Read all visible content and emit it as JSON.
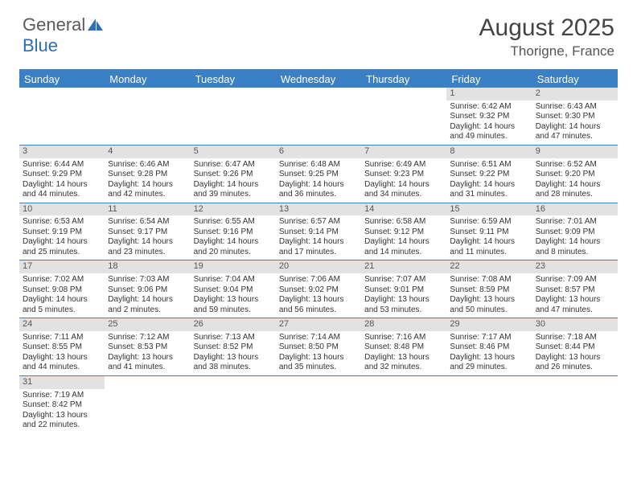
{
  "logo": {
    "text1": "General",
    "text2": "Blue"
  },
  "title": "August 2025",
  "location": "Thorigne, France",
  "colors": {
    "header_bg": "#3b7fc4",
    "header_text": "#ffffff",
    "daynum_bg": "#e2e2e2",
    "border": "#3b7fc4"
  },
  "day_headers": [
    "Sunday",
    "Monday",
    "Tuesday",
    "Wednesday",
    "Thursday",
    "Friday",
    "Saturday"
  ],
  "weeks": [
    [
      null,
      null,
      null,
      null,
      null,
      {
        "n": "1",
        "sr": "6:42 AM",
        "ss": "9:32 PM",
        "dl": "14 hours and 49 minutes."
      },
      {
        "n": "2",
        "sr": "6:43 AM",
        "ss": "9:30 PM",
        "dl": "14 hours and 47 minutes."
      }
    ],
    [
      {
        "n": "3",
        "sr": "6:44 AM",
        "ss": "9:29 PM",
        "dl": "14 hours and 44 minutes."
      },
      {
        "n": "4",
        "sr": "6:46 AM",
        "ss": "9:28 PM",
        "dl": "14 hours and 42 minutes."
      },
      {
        "n": "5",
        "sr": "6:47 AM",
        "ss": "9:26 PM",
        "dl": "14 hours and 39 minutes."
      },
      {
        "n": "6",
        "sr": "6:48 AM",
        "ss": "9:25 PM",
        "dl": "14 hours and 36 minutes."
      },
      {
        "n": "7",
        "sr": "6:49 AM",
        "ss": "9:23 PM",
        "dl": "14 hours and 34 minutes."
      },
      {
        "n": "8",
        "sr": "6:51 AM",
        "ss": "9:22 PM",
        "dl": "14 hours and 31 minutes."
      },
      {
        "n": "9",
        "sr": "6:52 AM",
        "ss": "9:20 PM",
        "dl": "14 hours and 28 minutes."
      }
    ],
    [
      {
        "n": "10",
        "sr": "6:53 AM",
        "ss": "9:19 PM",
        "dl": "14 hours and 25 minutes."
      },
      {
        "n": "11",
        "sr": "6:54 AM",
        "ss": "9:17 PM",
        "dl": "14 hours and 23 minutes."
      },
      {
        "n": "12",
        "sr": "6:55 AM",
        "ss": "9:16 PM",
        "dl": "14 hours and 20 minutes."
      },
      {
        "n": "13",
        "sr": "6:57 AM",
        "ss": "9:14 PM",
        "dl": "14 hours and 17 minutes."
      },
      {
        "n": "14",
        "sr": "6:58 AM",
        "ss": "9:12 PM",
        "dl": "14 hours and 14 minutes."
      },
      {
        "n": "15",
        "sr": "6:59 AM",
        "ss": "9:11 PM",
        "dl": "14 hours and 11 minutes."
      },
      {
        "n": "16",
        "sr": "7:01 AM",
        "ss": "9:09 PM",
        "dl": "14 hours and 8 minutes."
      }
    ],
    [
      {
        "n": "17",
        "sr": "7:02 AM",
        "ss": "9:08 PM",
        "dl": "14 hours and 5 minutes."
      },
      {
        "n": "18",
        "sr": "7:03 AM",
        "ss": "9:06 PM",
        "dl": "14 hours and 2 minutes."
      },
      {
        "n": "19",
        "sr": "7:04 AM",
        "ss": "9:04 PM",
        "dl": "13 hours and 59 minutes."
      },
      {
        "n": "20",
        "sr": "7:06 AM",
        "ss": "9:02 PM",
        "dl": "13 hours and 56 minutes."
      },
      {
        "n": "21",
        "sr": "7:07 AM",
        "ss": "9:01 PM",
        "dl": "13 hours and 53 minutes."
      },
      {
        "n": "22",
        "sr": "7:08 AM",
        "ss": "8:59 PM",
        "dl": "13 hours and 50 minutes."
      },
      {
        "n": "23",
        "sr": "7:09 AM",
        "ss": "8:57 PM",
        "dl": "13 hours and 47 minutes."
      }
    ],
    [
      {
        "n": "24",
        "sr": "7:11 AM",
        "ss": "8:55 PM",
        "dl": "13 hours and 44 minutes."
      },
      {
        "n": "25",
        "sr": "7:12 AM",
        "ss": "8:53 PM",
        "dl": "13 hours and 41 minutes."
      },
      {
        "n": "26",
        "sr": "7:13 AM",
        "ss": "8:52 PM",
        "dl": "13 hours and 38 minutes."
      },
      {
        "n": "27",
        "sr": "7:14 AM",
        "ss": "8:50 PM",
        "dl": "13 hours and 35 minutes."
      },
      {
        "n": "28",
        "sr": "7:16 AM",
        "ss": "8:48 PM",
        "dl": "13 hours and 32 minutes."
      },
      {
        "n": "29",
        "sr": "7:17 AM",
        "ss": "8:46 PM",
        "dl": "13 hours and 29 minutes."
      },
      {
        "n": "30",
        "sr": "7:18 AM",
        "ss": "8:44 PM",
        "dl": "13 hours and 26 minutes."
      }
    ],
    [
      {
        "n": "31",
        "sr": "7:19 AM",
        "ss": "8:42 PM",
        "dl": "13 hours and 22 minutes."
      },
      null,
      null,
      null,
      null,
      null,
      null
    ]
  ],
  "labels": {
    "sunrise": "Sunrise:",
    "sunset": "Sunset:",
    "daylight": "Daylight:"
  }
}
